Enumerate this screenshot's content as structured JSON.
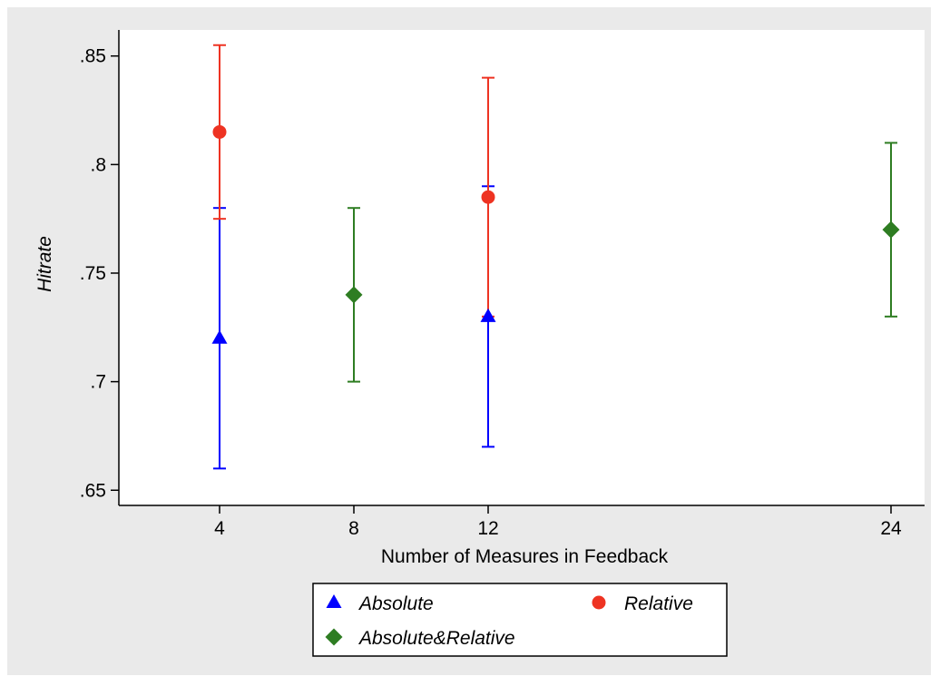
{
  "chart_data": {
    "type": "scatter",
    "title": "",
    "xlabel": "Number of Measures in Feedback",
    "ylabel": "Hitrate",
    "xlim": [
      1,
      25
    ],
    "ylim": [
      0.643,
      0.862
    ],
    "x_ticks": [
      {
        "value": 4,
        "label": "4"
      },
      {
        "value": 8,
        "label": "8"
      },
      {
        "value": 12,
        "label": "12"
      },
      {
        "value": 24,
        "label": "24"
      }
    ],
    "y_ticks": [
      {
        "value": 0.65,
        "label": ".65"
      },
      {
        "value": 0.7,
        "label": ".7"
      },
      {
        "value": 0.75,
        "label": ".75"
      },
      {
        "value": 0.8,
        "label": ".8"
      },
      {
        "value": 0.85,
        "label": ".85"
      }
    ],
    "grid": false,
    "legend_position": "bottom",
    "series": [
      {
        "name": "Absolute",
        "color": "#0000ff",
        "marker": "triangle",
        "points": [
          {
            "x": 4,
            "y": 0.72,
            "low": 0.66,
            "high": 0.78
          },
          {
            "x": 12,
            "y": 0.73,
            "low": 0.67,
            "high": 0.79
          }
        ]
      },
      {
        "name": "Relative",
        "color": "#ee3322",
        "marker": "circle",
        "points": [
          {
            "x": 4,
            "y": 0.815,
            "low": 0.775,
            "high": 0.855
          },
          {
            "x": 12,
            "y": 0.785,
            "low": 0.73,
            "high": 0.84
          }
        ]
      },
      {
        "name": "Absolute&Relative",
        "color": "#2e7d22",
        "marker": "diamond",
        "points": [
          {
            "x": 8,
            "y": 0.74,
            "low": 0.7,
            "high": 0.78
          },
          {
            "x": 24,
            "y": 0.77,
            "low": 0.73,
            "high": 0.81
          }
        ]
      }
    ],
    "legend": [
      {
        "label": "Absolute",
        "marker": "triangle",
        "color": "#0000ff"
      },
      {
        "label": "Relative",
        "marker": "circle",
        "color": "#ee3322"
      },
      {
        "label": "Absolute&Relative",
        "marker": "diamond",
        "color": "#2e7d22"
      }
    ],
    "colors": {
      "outer_background": "#eaeaea",
      "plot_background": "#ffffff",
      "axis": "#000000"
    }
  }
}
